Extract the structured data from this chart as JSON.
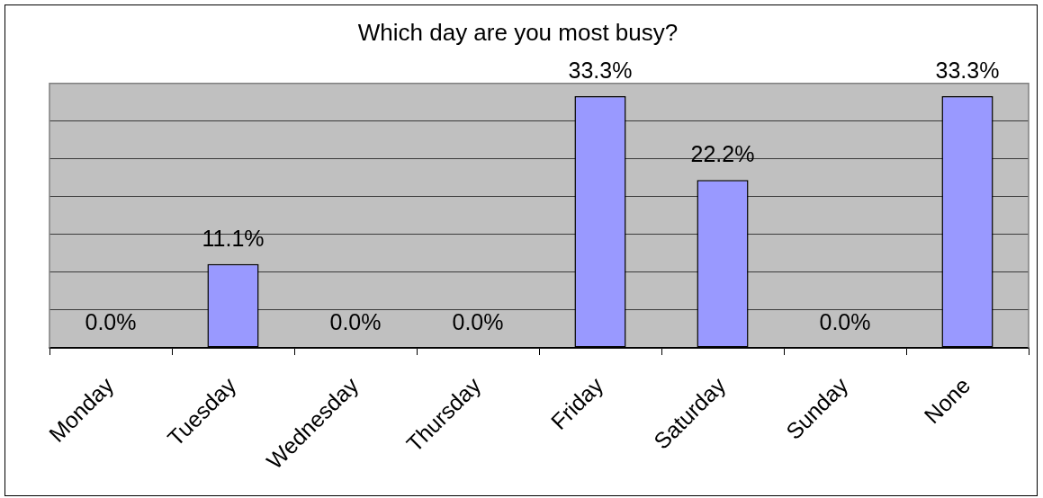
{
  "chart_data": {
    "type": "bar",
    "title": "Which day are you most busy?",
    "categories": [
      "Monday",
      "Tuesday",
      "Wednesday",
      "Thursday",
      "Friday",
      "Saturday",
      "Sunday",
      "None"
    ],
    "values": [
      0,
      11.1,
      0,
      0,
      33.3,
      22.2,
      0,
      33.3
    ],
    "value_labels": [
      "0.0%",
      "11.1%",
      "0.0%",
      "0.0%",
      "33.3%",
      "22.2%",
      "0.0%",
      "33.3%"
    ],
    "color": "#9999ff",
    "ylim": [
      0,
      35
    ],
    "yticks": [
      {
        "value": 0,
        "label": null
      },
      {
        "value": 5,
        "label": null
      },
      {
        "value": 10,
        "label": null
      },
      {
        "value": 15,
        "label": null
      },
      {
        "value": 20,
        "label": null
      },
      {
        "value": 25,
        "label": null
      },
      {
        "value": 30,
        "label": null
      },
      {
        "value": 35,
        "label": null
      }
    ],
    "grid": "y",
    "tick_labels": "x"
  }
}
